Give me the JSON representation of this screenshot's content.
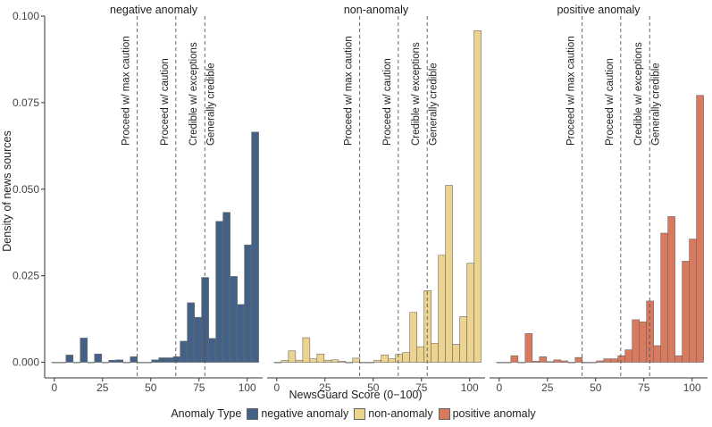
{
  "chart_data": {
    "type": "bar",
    "xlabel": "NewsGuard Score (0−100)",
    "ylabel": "Density of news sources",
    "xlim": [
      -5,
      108
    ],
    "ylim": [
      -0.0045,
      0.1
    ],
    "x_ticks": [
      "0",
      "25",
      "50",
      "75",
      "100"
    ],
    "y_ticks": [
      "0.000",
      "0.025",
      "0.050",
      "0.075",
      "0.100"
    ],
    "bin_width": 3.7,
    "thresholds": [
      {
        "x": 43,
        "label": "Proceed w/ max caution"
      },
      {
        "x": 63,
        "label": "Proceed w/ caution"
      },
      {
        "x": 78,
        "label": "Credible w/ exceptions"
      },
      {
        "x": 79,
        "label": "Generally credible",
        "text_x": 87
      }
    ],
    "legend": {
      "title": "Anomaly Type",
      "items": [
        "negative anomaly",
        "non-anomaly",
        "positive anomaly"
      ]
    },
    "bin_centers": [
      0.5,
      4.2,
      7.9,
      11.6,
      15.3,
      19.0,
      22.7,
      26.4,
      30.1,
      33.8,
      37.5,
      41.2,
      44.9,
      48.6,
      52.3,
      56.0,
      59.7,
      63.4,
      67.1,
      70.8,
      74.5,
      78.2,
      81.9,
      85.6,
      89.3,
      93.0,
      96.7,
      100.4,
      104.1
    ],
    "series": [
      {
        "name": "negative anomaly",
        "color": "#436187",
        "values": [
          0,
          0,
          0.0021,
          0,
          0.007,
          0,
          0.0024,
          0,
          0.0006,
          0.0007,
          0,
          0.0016,
          0,
          0,
          0.0007,
          0.0013,
          0.0013,
          0.0016,
          0.0061,
          0.0172,
          0.013,
          0.0245,
          0.0069,
          0.0407,
          0.0433,
          0.0248,
          0.0167,
          0.0339,
          0.0665
        ]
      },
      {
        "name": "non-anomaly",
        "color": "#EDD48E",
        "values": [
          0,
          0.0005,
          0.0033,
          0.0006,
          0.0071,
          0.001,
          0.0024,
          0.0006,
          0.0007,
          0.0003,
          0,
          0.0012,
          0,
          0,
          0.0006,
          0.0021,
          0.001,
          0.0023,
          0.0028,
          0.0144,
          0.0045,
          0.0207,
          0.0055,
          0.0309,
          0.0511,
          0.0052,
          0.0132,
          0.0286,
          0.0958
        ]
      },
      {
        "name": "positive anomaly",
        "color": "#D97A5E",
        "values": [
          0,
          0,
          0.0019,
          0,
          0.0083,
          0.0003,
          0.0016,
          0.0002,
          0.0007,
          0.0004,
          0,
          0.0014,
          0,
          0,
          0.0004,
          0.001,
          0.001,
          0.0019,
          0.0036,
          0.0123,
          0.0117,
          0.0177,
          0.0048,
          0.0373,
          0.0421,
          0.0019,
          0.0292,
          0.0356,
          0.0771
        ]
      }
    ]
  }
}
